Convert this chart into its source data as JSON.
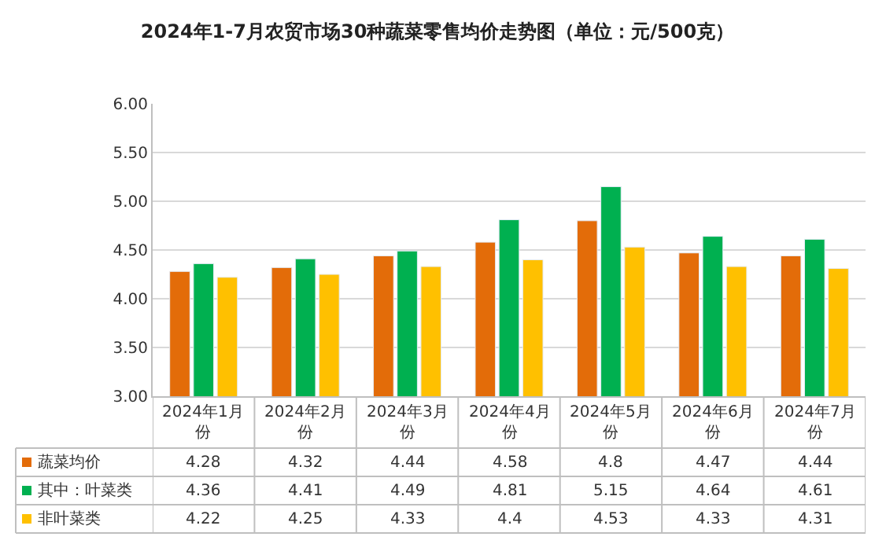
{
  "chart_data": {
    "type": "bar",
    "title": "2024年1-7月农贸市场30种蔬菜零售均价走势图（单位：元/500克）",
    "categories": [
      "2024年1月份",
      "2024年2月份",
      "2024年3月份",
      "2024年4月份",
      "2024年5月份",
      "2024年6月份",
      "2024年7月份"
    ],
    "series": [
      {
        "name": "蔬菜均价",
        "color": "#e36c09",
        "values": [
          4.28,
          4.32,
          4.44,
          4.58,
          4.8,
          4.47,
          4.44
        ]
      },
      {
        "name": "其中：叶菜类",
        "color": "#00b050",
        "values": [
          4.36,
          4.41,
          4.49,
          4.81,
          5.15,
          4.64,
          4.61
        ]
      },
      {
        "name": "非叶菜类",
        "color": "#ffc000",
        "values": [
          4.22,
          4.25,
          4.33,
          4.4,
          4.53,
          4.33,
          4.31
        ]
      }
    ],
    "ylim": [
      3,
      6
    ],
    "yticks": [
      {
        "value": 3,
        "label": "3.00"
      },
      {
        "value": 3.5,
        "label": "3.50"
      },
      {
        "value": 4,
        "label": "4.00"
      },
      {
        "value": 4.5,
        "label": "4.50"
      },
      {
        "value": 5,
        "label": "5.00"
      },
      {
        "value": 5.5,
        "label": "5.50"
      },
      {
        "value": 6,
        "label": "6.00"
      }
    ],
    "grid": "y",
    "data_labels": true,
    "legend": "bottom left"
  }
}
